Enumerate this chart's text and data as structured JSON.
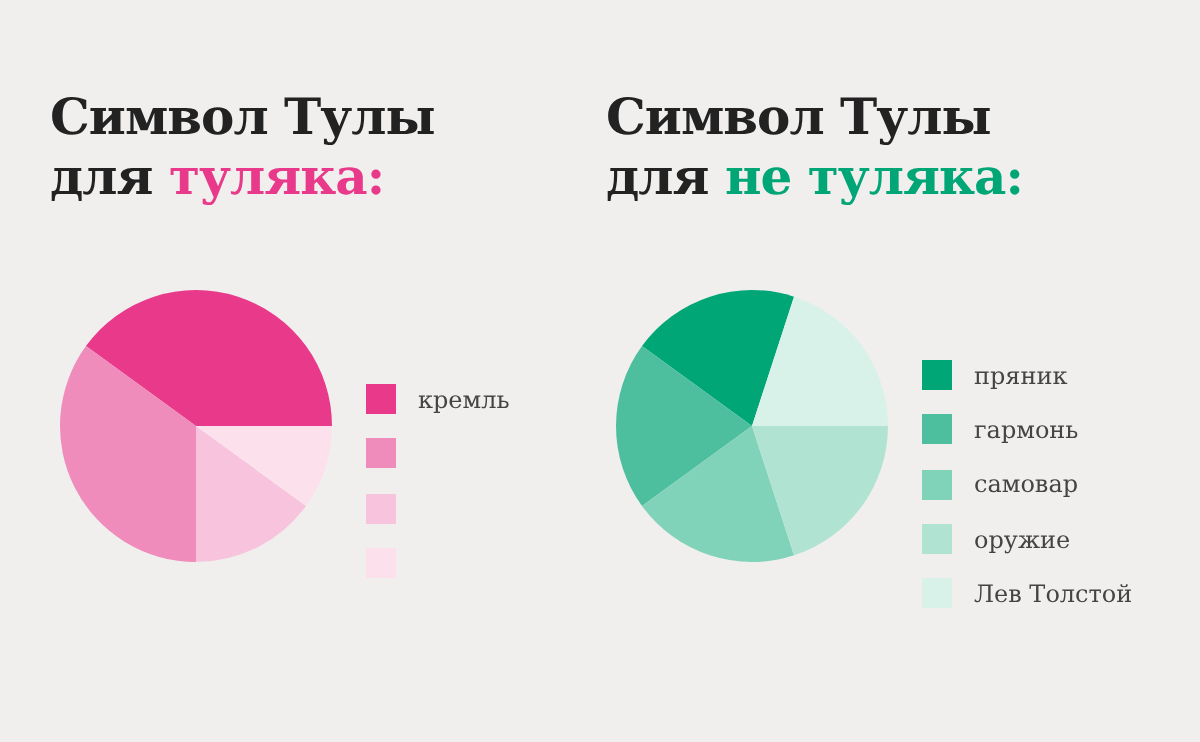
{
  "chart_data": [
    {
      "type": "pie",
      "title": "Символ Тулы для",
      "subtitle": "туляка:",
      "categories": [
        "кремль",
        null,
        null,
        null
      ],
      "values": [
        40,
        35,
        15,
        10
      ],
      "colors": [
        "#e8398a",
        "#f08cbc",
        "#f8c4dd",
        "#fce1ed"
      ],
      "legend": "right"
    },
    {
      "type": "pie",
      "title": "Символ Тулы для",
      "subtitle": "не туляка:",
      "categories": [
        "пряник",
        "гармонь",
        "самовар",
        "оружие",
        "Лев Толстой"
      ],
      "values": [
        20,
        20,
        20,
        20,
        20
      ],
      "colors": [
        "#00a676",
        "#4dbf9f",
        "#80d3b8",
        "#b1e3d3",
        "#d8f1e9"
      ],
      "legend": "right"
    }
  ]
}
